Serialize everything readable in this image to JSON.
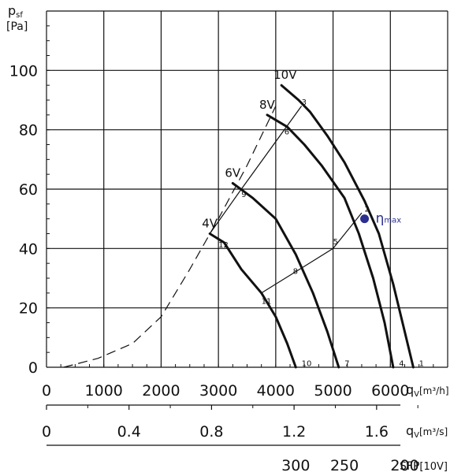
{
  "chart_data": {
    "type": "line",
    "ylabel_main": "p",
    "ylabel_sub": "sf",
    "ylabel_unit": "[Pa]",
    "ylim": [
      0,
      120
    ],
    "xlim": [
      0,
      7000
    ],
    "yticks": [
      0,
      20,
      40,
      60,
      80,
      100
    ],
    "xticks": [
      0,
      1000,
      2000,
      3000,
      4000,
      5000,
      6000
    ],
    "x_axis_label": "q",
    "x_axis_sub": "V",
    "x_axis_unit": "[m³/h]",
    "x2_ticks": [
      {
        "label": "0",
        "x": 0
      },
      {
        "label": "0.4",
        "x": 1440
      },
      {
        "label": "0.8",
        "x": 2880
      },
      {
        "label": "1.2",
        "x": 4320
      },
      {
        "label": "1.6",
        "x": 5760
      }
    ],
    "x2_axis_label": "q",
    "x2_axis_sub": "V",
    "x2_axis_unit": "[m³/s]",
    "sfp_ticks": [
      {
        "label": "300",
        "x": 4350
      },
      {
        "label": "250",
        "x": 5200
      },
      {
        "label": "200",
        "x": 6250
      }
    ],
    "sfp_label": "SFP",
    "sfp_unit": "[10V]",
    "grid": true,
    "series": [
      {
        "name": "10V",
        "points": [
          [
            4100,
            95
          ],
          [
            4400,
            90
          ],
          [
            4600,
            86
          ],
          [
            4900,
            78
          ],
          [
            5200,
            69
          ],
          [
            5550,
            56
          ],
          [
            5800,
            45
          ],
          [
            6050,
            28
          ],
          [
            6250,
            12
          ],
          [
            6400,
            0
          ]
        ]
      },
      {
        "name": "8V",
        "points": [
          [
            3850,
            85
          ],
          [
            4200,
            81
          ],
          [
            4500,
            75
          ],
          [
            4800,
            68
          ],
          [
            5200,
            57
          ],
          [
            5450,
            45
          ],
          [
            5700,
            30
          ],
          [
            5900,
            15
          ],
          [
            6050,
            0
          ]
        ]
      },
      {
        "name": "6V",
        "points": [
          [
            3250,
            62
          ],
          [
            3600,
            57
          ],
          [
            4000,
            50
          ],
          [
            4350,
            38
          ],
          [
            4650,
            25
          ],
          [
            4900,
            12
          ],
          [
            5100,
            0
          ]
        ]
      },
      {
        "name": "4V",
        "points": [
          [
            2850,
            45
          ],
          [
            3100,
            42
          ],
          [
            3400,
            33
          ],
          [
            3750,
            25
          ],
          [
            4000,
            17
          ],
          [
            4200,
            8
          ],
          [
            4350,
            0
          ]
        ]
      }
    ],
    "dashed_curve": [
      [
        300,
        0
      ],
      [
        900,
        3
      ],
      [
        1500,
        8
      ],
      [
        2000,
        17
      ],
      [
        2500,
        33
      ],
      [
        3000,
        50
      ],
      [
        3500,
        68
      ],
      [
        4000,
        88
      ]
    ],
    "system_lines": [
      [
        [
          3750,
          25
        ],
        [
          5000,
          40
        ],
        [
          5500,
          52
        ]
      ],
      [
        [
          2850,
          45
        ],
        [
          3400,
          60
        ],
        [
          4450,
          88
        ]
      ]
    ],
    "operating_point_labels": [
      {
        "label": "1",
        "x": 6500,
        "y": 2
      },
      {
        "label": "2",
        "x": 5550,
        "y": 54
      },
      {
        "label": "3",
        "x": 4450,
        "y": 90
      },
      {
        "label": "4",
        "x": 6150,
        "y": 2
      },
      {
        "label": "5",
        "x": 5000,
        "y": 43
      },
      {
        "label": "6",
        "x": 4150,
        "y": 80
      },
      {
        "label": "7",
        "x": 5200,
        "y": 2
      },
      {
        "label": "8",
        "x": 4300,
        "y": 33
      },
      {
        "label": "9",
        "x": 3400,
        "y": 59
      },
      {
        "label": "10",
        "x": 4450,
        "y": 2
      },
      {
        "label": "11",
        "x": 3750,
        "y": 23
      },
      {
        "label": "12",
        "x": 3000,
        "y": 42
      }
    ],
    "eta_max": {
      "label": "η",
      "sub": "max",
      "x": 5550,
      "y": 50,
      "color": "#2b2f8f"
    }
  }
}
